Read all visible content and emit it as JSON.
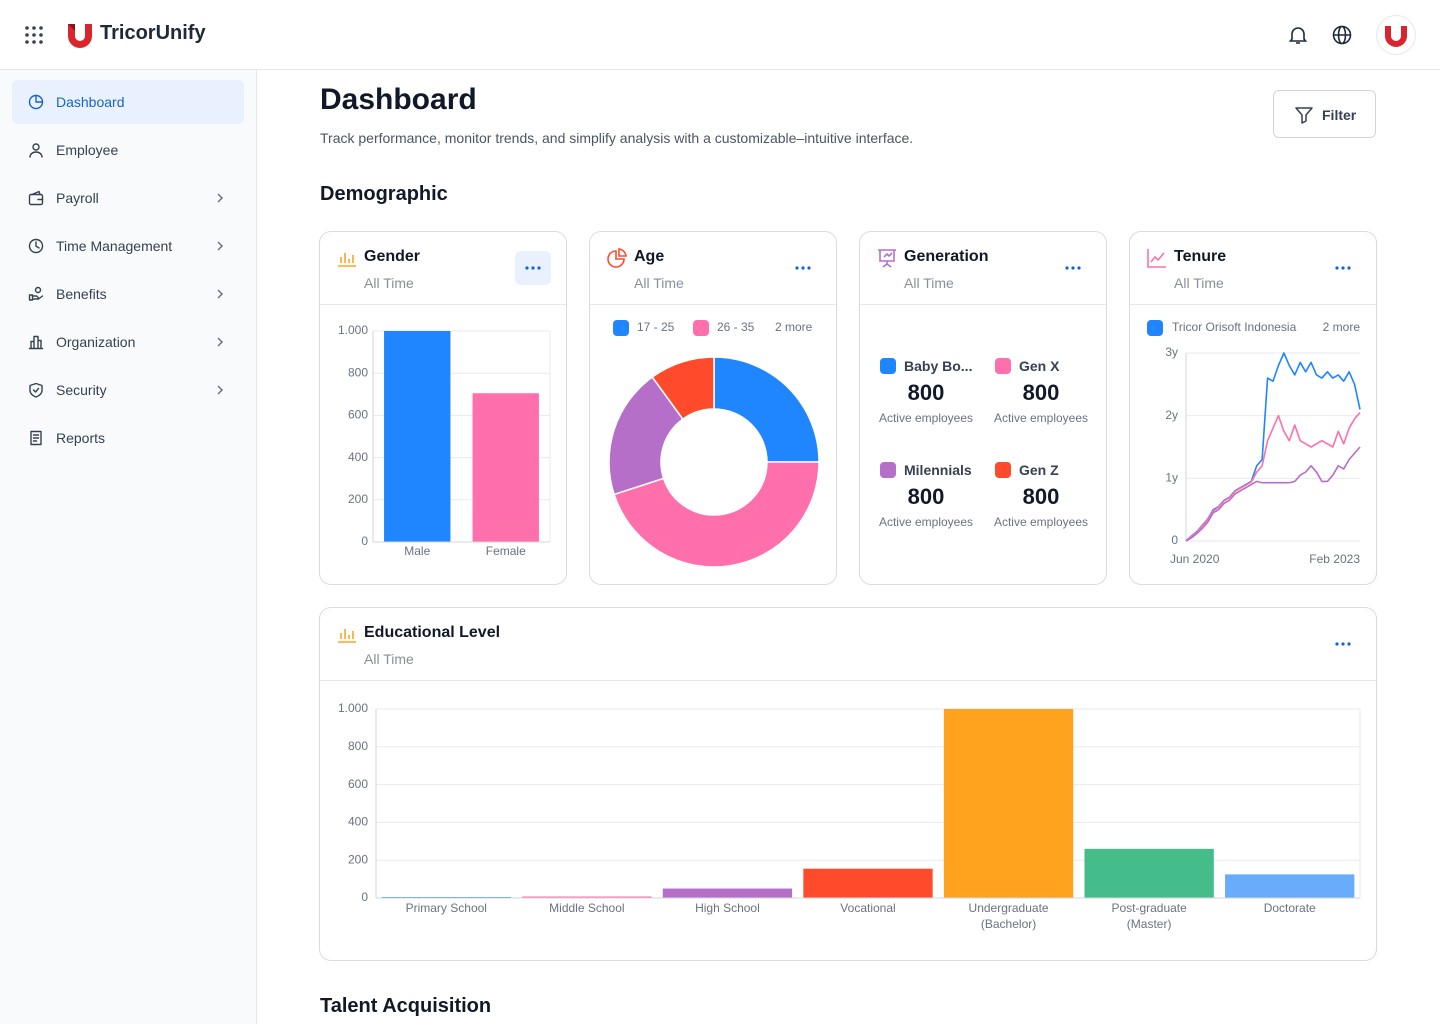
{
  "header": {
    "brand": "TricorUnify"
  },
  "sidebar": {
    "items": [
      {
        "label": "Dashboard",
        "active": true
      },
      {
        "label": "Employee"
      },
      {
        "label": "Payroll",
        "submenu": true
      },
      {
        "label": "Time Management",
        "submenu": true
      },
      {
        "label": "Benefits",
        "submenu": true
      },
      {
        "label": "Organization",
        "submenu": true
      },
      {
        "label": "Security",
        "submenu": true
      },
      {
        "label": "Reports"
      }
    ]
  },
  "page": {
    "title": "Dashboard",
    "subtitle": "Track performance, monitor trends, and simplify analysis with a customizable–intuitive interface.",
    "filter": "Filter"
  },
  "sections": [
    "Demographic",
    "Talent Acquisition"
  ],
  "generation": {
    "title": "Generation",
    "subtitle": "All Time",
    "items": [
      {
        "name": "Baby Bo...",
        "value": 800,
        "caption": "Active employees",
        "color": "#1f86ff"
      },
      {
        "name": "Gen X",
        "value": 800,
        "caption": "Active employees",
        "color": "#ff6fab"
      },
      {
        "name": "Milennials",
        "value": 800,
        "caption": "Active employees",
        "color": "#b66fc9"
      },
      {
        "name": "Gen Z",
        "value": 800,
        "caption": "Active employees",
        "color": "#ff4b2b"
      }
    ]
  },
  "chart_data": [
    {
      "type": "bar",
      "title": "Gender",
      "subtitle": "All Time",
      "categories": [
        "Male",
        "Female"
      ],
      "values": [
        1000,
        705
      ],
      "colors": [
        "#1f86ff",
        "#ff6fab"
      ],
      "ylim": [
        0,
        1000
      ],
      "yticks": [
        0,
        200,
        400,
        600,
        800,
        {
          "value": 1000,
          "label": "1.000"
        }
      ],
      "grid": true
    },
    {
      "type": "pie",
      "title": "Age",
      "subtitle": "All Time",
      "categories": [
        "17 - 25",
        "26 - 35",
        null,
        null
      ],
      "values": [
        25,
        45,
        20,
        10
      ],
      "colors": [
        "#1f86ff",
        "#ff6fab",
        "#b66fc9",
        "#ff4b2b"
      ],
      "donut": true,
      "legend_more": "2 more"
    },
    {
      "type": "line",
      "title": "Tenure",
      "subtitle": "All Time",
      "categories": [
        "Jun 2020",
        null,
        null,
        null,
        null,
        null,
        null,
        null,
        null,
        null,
        null,
        null,
        null,
        null,
        null,
        null,
        null,
        null,
        null,
        null,
        null,
        null,
        null,
        null,
        null,
        null,
        null,
        null,
        null,
        null,
        null,
        null,
        "Feb 2023"
      ],
      "series": [
        {
          "name": "Tricor Orisoft Indonesia",
          "color": "#1f86ff",
          "values": [
            0,
            0.08,
            0.15,
            0.25,
            0.35,
            0.5,
            0.55,
            0.65,
            0.7,
            0.8,
            0.85,
            0.9,
            0.95,
            1.2,
            1.3,
            2.6,
            2.55,
            2.8,
            3.0,
            2.8,
            2.65,
            2.85,
            2.7,
            2.85,
            2.65,
            2.6,
            2.7,
            2.6,
            2.65,
            2.55,
            2.7,
            2.5,
            2.1
          ]
        },
        {
          "name": null,
          "color": "#ff6fab",
          "values": [
            0,
            0.07,
            0.14,
            0.24,
            0.34,
            0.48,
            0.54,
            0.64,
            0.69,
            0.79,
            0.84,
            0.89,
            0.94,
            1.1,
            1.2,
            1.6,
            1.8,
            2.0,
            1.75,
            1.6,
            1.85,
            1.6,
            1.55,
            1.5,
            1.55,
            1.6,
            1.55,
            1.5,
            1.75,
            1.55,
            1.8,
            1.95,
            2.05
          ]
        },
        {
          "name": null,
          "color": "#b66fc9",
          "values": [
            0,
            0.05,
            0.12,
            0.2,
            0.3,
            0.45,
            0.5,
            0.6,
            0.65,
            0.75,
            0.8,
            0.85,
            0.9,
            0.95,
            0.93,
            0.93,
            0.93,
            0.93,
            0.93,
            0.93,
            0.95,
            1.05,
            1.1,
            1.2,
            1.1,
            0.95,
            0.95,
            1.05,
            1.2,
            1.15,
            1.3,
            1.4,
            1.5
          ]
        }
      ],
      "ylim": [
        0,
        3
      ],
      "yticks": [
        0,
        {
          "value": 1,
          "label": "1y"
        },
        {
          "value": 2,
          "label": "2y"
        },
        {
          "value": 3,
          "label": "3y"
        }
      ],
      "grid": true,
      "legend_more": "2 more"
    },
    {
      "type": "bar",
      "title": "Educational Level",
      "subtitle": "All Time",
      "categories": [
        "Primary School",
        "Middle School",
        "High School",
        "Vocational",
        "Undergraduate\n(Bachelor)",
        "Post-graduate\n(Master)",
        "Doctorate"
      ],
      "values": [
        5,
        8,
        50,
        155,
        1000,
        260,
        125
      ],
      "colors": [
        "#1f86ff",
        "#ff6fab",
        "#b66fc9",
        "#ff4b2b",
        "#ffa31f",
        "#45bd8b",
        "#69acfb"
      ],
      "ylim": [
        0,
        1000
      ],
      "yticks": [
        0,
        200,
        400,
        600,
        800,
        {
          "value": 1000,
          "label": "1.000"
        }
      ],
      "grid": true
    }
  ]
}
